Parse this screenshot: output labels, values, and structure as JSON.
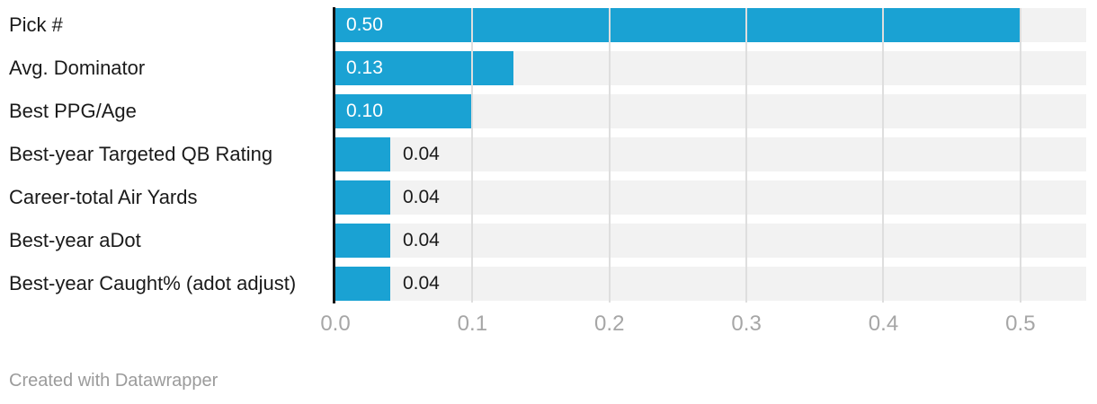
{
  "chart_data": {
    "type": "bar",
    "orientation": "horizontal",
    "title": "",
    "xlabel": "",
    "ylabel": "",
    "categories": [
      "Pick #",
      "Avg. Dominator",
      "Best PPG/Age",
      "Best-year Targeted QB Rating",
      "Career-total Air Yards",
      "Best-year aDot",
      "Best-year Caught% (adot adjust)"
    ],
    "values": [
      0.5,
      0.13,
      0.1,
      0.04,
      0.04,
      0.04,
      0.04
    ],
    "value_labels": [
      "0.50",
      "0.13",
      "0.10",
      "0.04",
      "0.04",
      "0.04",
      "0.04"
    ],
    "label_inside": [
      true,
      true,
      true,
      false,
      false,
      false,
      false
    ],
    "x_ticks": [
      "0.0",
      "0.1",
      "0.2",
      "0.3",
      "0.4",
      "0.5"
    ],
    "x_tick_values": [
      0.0,
      0.1,
      0.2,
      0.3,
      0.4,
      0.5
    ],
    "xlim": [
      0,
      0.548
    ],
    "grid": true,
    "legend": false,
    "colors": {
      "bar": "#1aa2d3",
      "track": "#f2f2f2",
      "gridline": "#dedede",
      "axis_line": "#141414",
      "category_label": "#1a1a1a",
      "value_label_inside": "#ffffff",
      "value_label_outside": "#1a1a1a",
      "tick_label": "#a6a6a6",
      "footer_text": "#9b9b9b"
    }
  },
  "footer": {
    "credit": "Created with Datawrapper"
  }
}
